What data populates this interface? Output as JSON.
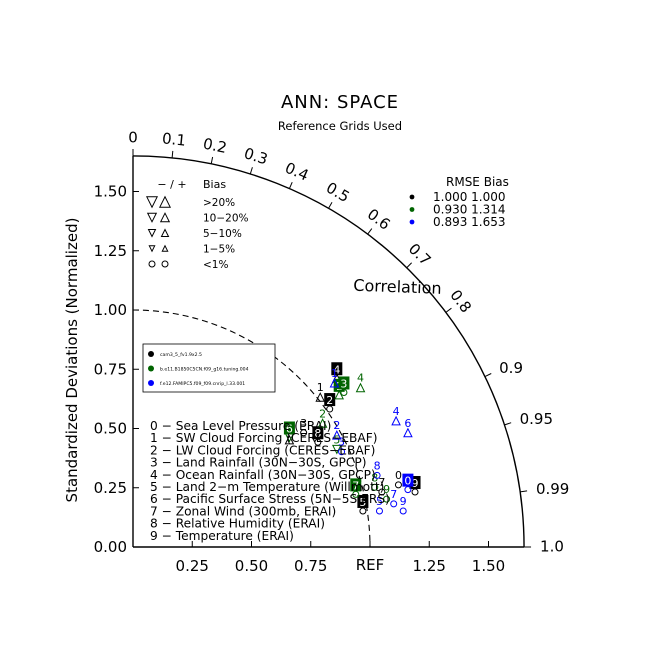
{
  "chart_data": {
    "type": "scatter",
    "subtype": "taylor-diagram",
    "title": "ANN: SPACE",
    "subtitle": "Reference Grids Used",
    "ylabel": "Standardized Deviations (Normalized)",
    "correlation_label": "Correlation",
    "ref_label": "REF",
    "rlim": [
      0,
      1.65
    ],
    "x_ticks": [
      {
        "value": 0.25,
        "label": "0.25"
      },
      {
        "value": 0.5,
        "label": "0.50"
      },
      {
        "value": 0.75,
        "label": "0.75"
      },
      {
        "value": 1.25,
        "label": "1.25"
      },
      {
        "value": 1.5,
        "label": "1.50"
      }
    ],
    "y_ticks": [
      {
        "value": 0.0,
        "label": "0.00"
      },
      {
        "value": 0.25,
        "label": "0.25"
      },
      {
        "value": 0.5,
        "label": "0.50"
      },
      {
        "value": 0.75,
        "label": "0.75"
      },
      {
        "value": 1.0,
        "label": "1.00"
      },
      {
        "value": 1.25,
        "label": "1.25"
      },
      {
        "value": 1.5,
        "label": "1.50"
      }
    ],
    "corr_ticks": [
      {
        "value": 0.0,
        "label": "0"
      },
      {
        "value": 0.1,
        "label": "0.1"
      },
      {
        "value": 0.2,
        "label": "0.2"
      },
      {
        "value": 0.3,
        "label": "0.3"
      },
      {
        "value": 0.4,
        "label": "0.4"
      },
      {
        "value": 0.5,
        "label": "0.5"
      },
      {
        "value": 0.6,
        "label": "0.6"
      },
      {
        "value": 0.7,
        "label": "0.7"
      },
      {
        "value": 0.8,
        "label": "0.8"
      },
      {
        "value": 0.9,
        "label": "0.9"
      },
      {
        "value": 0.95,
        "label": "0.95"
      },
      {
        "value": 0.99,
        "label": "0.99"
      },
      {
        "value": 1.0,
        "label": "1.0"
      }
    ],
    "bias_legend": {
      "header_minus_plus": "− / +",
      "header_bias": "Bias",
      "rows": [
        {
          "label": ">20%",
          "size": 5.2
        },
        {
          "label": "10−20%",
          "size": 4.3
        },
        {
          "label": "5−10%",
          "size": 3.5
        },
        {
          "label": "1−5%",
          "size": 2.7
        },
        {
          "label": "<1%",
          "size": 3.0
        }
      ]
    },
    "rmse_legend": {
      "header": "RMSE  Bias",
      "rows": [
        {
          "color": "#000000",
          "text": "1.000 1.000"
        },
        {
          "color": "#006400",
          "text": "0.930 1.314"
        },
        {
          "color": "#0000ff",
          "text": "0.893 1.653"
        }
      ]
    },
    "case_legend": [
      {
        "color": "#000000",
        "label": "cam3_5_fv1.9x2.5"
      },
      {
        "color": "#006400",
        "label": "b.e11.B1850C5CN.f09_g16.tuning.004"
      },
      {
        "color": "#0000ff",
        "label": "f.e12.FAMIPC5.f09_f09.cnrip_l.33.001"
      }
    ],
    "variables": [
      {
        "id": "0",
        "label": "0 − Sea Level Pressure (ERAI)"
      },
      {
        "id": "1",
        "label": "1 − SW Cloud Forcing (CERES−EBAF)"
      },
      {
        "id": "2",
        "label": "2 − LW Cloud Forcing (CERES−EBAF)"
      },
      {
        "id": "3",
        "label": "3 − Land Rainfall (30N−30S, GPCP)"
      },
      {
        "id": "4",
        "label": "4 − Ocean Rainfall (30N−30S, GPCP)"
      },
      {
        "id": "5",
        "label": "5 − Land 2−m Temperature (Willmott)"
      },
      {
        "id": "6",
        "label": "6 − Pacific Surface Stress (5N−5S,ERS)"
      },
      {
        "id": "7",
        "label": "7 − Zonal Wind (300mb, ERAI)"
      },
      {
        "id": "8",
        "label": "8 − Relative Humidity (ERAI)"
      },
      {
        "id": "9",
        "label": "9 − Temperature (ERAI)"
      }
    ],
    "series": [
      {
        "name": "cam3_5_fv1.9x2.5",
        "color": "#000000",
        "points": [
          {
            "id": "0",
            "x": 1.12,
            "y": 0.3,
            "highlight": false,
            "marker": "circle"
          },
          {
            "id": "1",
            "x": 0.79,
            "y": 0.67,
            "highlight": false,
            "marker": "tri-up"
          },
          {
            "id": "2",
            "x": 0.83,
            "y": 0.62,
            "highlight": true,
            "marker": "circle"
          },
          {
            "id": "3",
            "x": 0.72,
            "y": 0.52,
            "highlight": false,
            "marker": "circle"
          },
          {
            "id": "4",
            "x": 0.86,
            "y": 0.75,
            "highlight": true,
            "marker": "tri-up"
          },
          {
            "id": "5",
            "x": 0.97,
            "y": 0.19,
            "highlight": true,
            "marker": "circle"
          },
          {
            "id": "6",
            "x": 0.66,
            "y": 0.49,
            "highlight": false,
            "marker": "tri-up"
          },
          {
            "id": "7",
            "x": 1.05,
            "y": 0.27,
            "highlight": false,
            "marker": "circle"
          },
          {
            "id": "8",
            "x": 0.78,
            "y": 0.48,
            "highlight": true,
            "marker": "circle"
          },
          {
            "id": "9",
            "x": 1.19,
            "y": 0.27,
            "highlight": true,
            "marker": "circle"
          }
        ]
      },
      {
        "name": "b.e11.B1850C5CN.f09_g16.tuning.004",
        "color": "#006400",
        "points": [
          {
            "id": "1",
            "x": 0.87,
            "y": 0.68,
            "highlight": true,
            "marker": "tri-up"
          },
          {
            "id": "2",
            "x": 0.8,
            "y": 0.56,
            "highlight": false,
            "marker": "tri-up"
          },
          {
            "id": "3",
            "x": 0.89,
            "y": 0.69,
            "highlight": true,
            "marker": "circle"
          },
          {
            "id": "4",
            "x": 0.96,
            "y": 0.71,
            "highlight": false,
            "marker": "tri-up"
          },
          {
            "id": "5",
            "x": 0.86,
            "y": 0.45,
            "highlight": false,
            "marker": "tri-down"
          },
          {
            "id": "6",
            "x": 0.66,
            "y": 0.5,
            "highlight": true,
            "marker": "tri-down"
          },
          {
            "id": "7",
            "x": 0.94,
            "y": 0.26,
            "highlight": true,
            "marker": "circle"
          },
          {
            "id": "8",
            "x": 1.02,
            "y": 0.29,
            "highlight": false,
            "marker": "circle"
          },
          {
            "id": "9",
            "x": 1.07,
            "y": 0.24,
            "highlight": false,
            "marker": "circle"
          }
        ]
      },
      {
        "name": "f.e12.FAMIPC5.f09_f09.cnrip_l.33.001",
        "color": "#0000ff",
        "points": [
          {
            "id": "0",
            "x": 1.16,
            "y": 0.28,
            "highlight": true,
            "marker": "circle"
          },
          {
            "id": "1",
            "x": 0.85,
            "y": 0.73,
            "highlight": false,
            "marker": "tri-up"
          },
          {
            "id": "2",
            "x": 0.86,
            "y": 0.51,
            "highlight": false,
            "marker": "tri-up"
          },
          {
            "id": "3",
            "x": 0.88,
            "y": 0.44,
            "highlight": false,
            "marker": "circle"
          },
          {
            "id": "4",
            "x": 1.11,
            "y": 0.57,
            "highlight": false,
            "marker": "tri-up"
          },
          {
            "id": "5",
            "x": 1.04,
            "y": 0.19,
            "highlight": false,
            "marker": "circle"
          },
          {
            "id": "6",
            "x": 1.16,
            "y": 0.52,
            "highlight": false,
            "marker": "tri-up"
          },
          {
            "id": "7",
            "x": 1.1,
            "y": 0.22,
            "highlight": false,
            "marker": "circle"
          },
          {
            "id": "8",
            "x": 1.03,
            "y": 0.34,
            "highlight": false,
            "marker": "circle"
          },
          {
            "id": "9",
            "x": 1.14,
            "y": 0.19,
            "highlight": false,
            "marker": "circle"
          }
        ]
      }
    ]
  }
}
